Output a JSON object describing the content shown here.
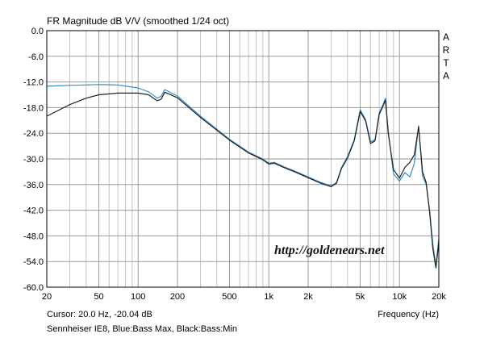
{
  "chart_data": {
    "type": "line",
    "title": "FR Magnitude dB V/V (smoothed 1/24 oct)",
    "xlabel": "Frequency (Hz)",
    "ylabel": "",
    "x_scale": "log",
    "xlim": [
      20,
      20000
    ],
    "ylim": [
      -60,
      0
    ],
    "grid": true,
    "y_ticks": [
      "0.0",
      "-6.0",
      "-12.0",
      "-18.0",
      "-24.0",
      "-30.0",
      "-36.0",
      "-42.0",
      "-48.0",
      "-54.0",
      "-60.0"
    ],
    "x_ticks": [
      {
        "value": 20,
        "label": "20"
      },
      {
        "value": 50,
        "label": "50"
      },
      {
        "value": 100,
        "label": "100"
      },
      {
        "value": 200,
        "label": "200"
      },
      {
        "value": 500,
        "label": "500"
      },
      {
        "value": 1000,
        "label": "1k"
      },
      {
        "value": 2000,
        "label": "2k"
      },
      {
        "value": 5000,
        "label": "5k"
      },
      {
        "value": 10000,
        "label": "10k"
      },
      {
        "value": 20000,
        "label": "20k"
      }
    ],
    "side_text": "ARTA",
    "watermark": "http://goldenears.net",
    "cursor_text": "Cursor: 20.0 Hz, -20.04 dB",
    "caption": "Sennheiser IE8, Blue:Bass Max, Black:Bass:Min",
    "series": [
      {
        "color": "#2f8fc4",
        "x": [
          20,
          30,
          50,
          70,
          100,
          120,
          140,
          150,
          160,
          200,
          300,
          500,
          700,
          900,
          1000,
          1100,
          1300,
          1600,
          2000,
          2500,
          3000,
          3300,
          3600,
          4000,
          4500,
          5000,
          5500,
          6000,
          6500,
          7000,
          7500,
          7800,
          8200,
          9000,
          10000,
          11000,
          12000,
          13000,
          14000,
          15000,
          16000,
          17000,
          18000,
          19000,
          20000
        ],
        "y": [
          -13.0,
          -12.8,
          -12.6,
          -12.7,
          -13.4,
          -14.3,
          -15.8,
          -15.3,
          -13.8,
          -15.3,
          -20.0,
          -25.4,
          -28.4,
          -30.0,
          -31.0,
          -30.8,
          -31.8,
          -32.9,
          -34.2,
          -35.5,
          -36.3,
          -35.5,
          -32.0,
          -29.5,
          -25.5,
          -18.5,
          -20.8,
          -26.0,
          -25.5,
          -19.2,
          -17.2,
          -15.8,
          -23.5,
          -33.5,
          -35.2,
          -33.2,
          -34.2,
          -31.0,
          -22.2,
          -34.0,
          -36.0,
          -42.0,
          -50.0,
          -55.0,
          -48.5
        ]
      },
      {
        "color": "#222222",
        "x": [
          20,
          25,
          30,
          40,
          50,
          70,
          100,
          120,
          140,
          150,
          160,
          200,
          300,
          500,
          700,
          900,
          1000,
          1100,
          1300,
          1600,
          2000,
          2500,
          3000,
          3300,
          3600,
          4000,
          4500,
          5000,
          5500,
          6000,
          6500,
          7000,
          7500,
          7800,
          8200,
          9000,
          10000,
          11000,
          12000,
          13000,
          14000,
          15000,
          16000,
          17000,
          18000,
          19000,
          20000
        ],
        "y": [
          -20.0,
          -18.5,
          -17.3,
          -15.8,
          -15.0,
          -14.6,
          -14.6,
          -15.0,
          -16.4,
          -16.0,
          -14.4,
          -15.7,
          -20.3,
          -25.6,
          -28.6,
          -30.2,
          -31.2,
          -31.0,
          -32.0,
          -33.1,
          -34.4,
          -35.7,
          -36.5,
          -35.7,
          -32.2,
          -29.8,
          -25.8,
          -18.9,
          -21.1,
          -26.4,
          -25.8,
          -19.6,
          -17.6,
          -16.2,
          -24.0,
          -32.5,
          -34.5,
          -32.0,
          -30.8,
          -29.0,
          -22.5,
          -33.0,
          -35.5,
          -42.5,
          -51.0,
          -55.5,
          -49.5
        ]
      }
    ]
  }
}
